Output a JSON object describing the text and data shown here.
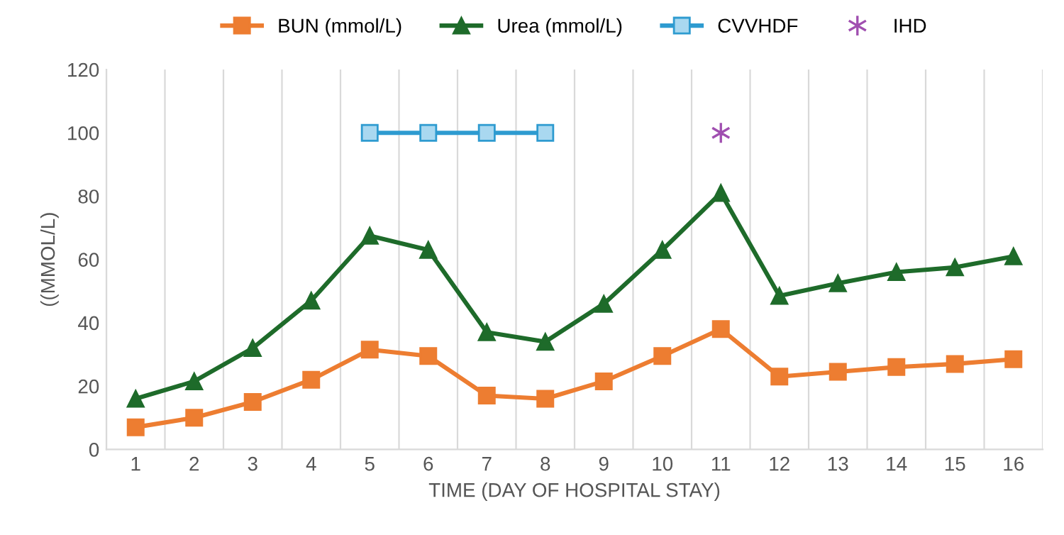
{
  "chart_data": {
    "type": "line",
    "xlabel": "TIME (DAY OF HOSPITAL STAY)",
    "ylabel": "((MMOL/L)",
    "categories": [
      "1",
      "2",
      "3",
      "4",
      "5",
      "6",
      "7",
      "8",
      "9",
      "10",
      "11",
      "12",
      "13",
      "14",
      "15",
      "16"
    ],
    "series": [
      {
        "name": "BUN (mmol/L)",
        "color": "#ed7d31",
        "marker": "square",
        "values": [
          7,
          10,
          15,
          22,
          31.5,
          29.5,
          17,
          16,
          21.5,
          29.5,
          38,
          23,
          24.5,
          26,
          27,
          28.5
        ]
      },
      {
        "name": "Urea (mmol/L)",
        "color": "#1e6b2a",
        "marker": "triangle",
        "values": [
          16,
          21.5,
          32,
          47,
          67.5,
          63,
          37,
          34,
          46,
          63,
          81,
          48.5,
          52.5,
          56,
          57.5,
          61
        ]
      },
      {
        "name": "CVVHDF",
        "color": "#2e9bd0",
        "marker": "square",
        "values": [
          null,
          null,
          null,
          null,
          100,
          100,
          100,
          100,
          null,
          null,
          null,
          null,
          null,
          null,
          null,
          null
        ]
      },
      {
        "name": "IHD",
        "color": "#a04fb0",
        "type": "scatter",
        "marker": "cross",
        "values": [
          null,
          null,
          null,
          null,
          null,
          null,
          null,
          null,
          null,
          null,
          100,
          null,
          null,
          null,
          null,
          null
        ]
      }
    ],
    "ylim": [
      0,
      120
    ],
    "yticks": [
      0,
      20,
      40,
      60,
      80,
      100,
      120
    ],
    "grid": "x",
    "legend": "top"
  }
}
